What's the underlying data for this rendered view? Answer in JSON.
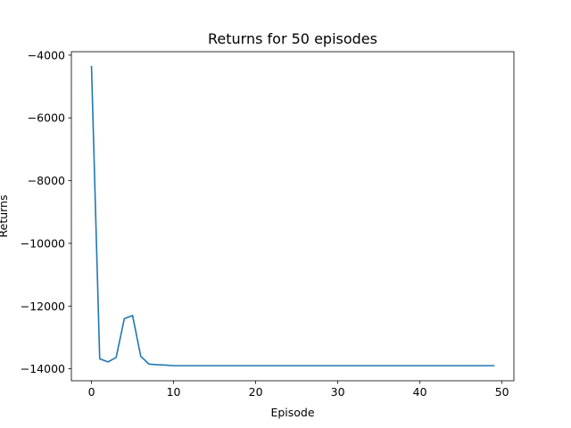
{
  "chart_data": {
    "type": "line",
    "title": "Returns for 50 episodes",
    "xlabel": "Episode",
    "ylabel": "Returns",
    "xlim": [
      -2.45,
      51.45
    ],
    "ylim": [
      -14380,
      -3890
    ],
    "x_ticks": [
      0,
      10,
      20,
      30,
      40,
      50
    ],
    "y_ticks": [
      -14000,
      -12000,
      -10000,
      -8000,
      -6000,
      -4000
    ],
    "x_tick_labels": [
      "0",
      "10",
      "20",
      "30",
      "40",
      "50"
    ],
    "y_tick_labels": [
      "−14000",
      "−12000",
      "−10000",
      "−8000",
      "−6000",
      "−4000"
    ],
    "grid": false,
    "legend": "none",
    "series": [
      {
        "color": "#1f77b4",
        "x": [
          0,
          1,
          2,
          3,
          4,
          5,
          6,
          7,
          8,
          9,
          10,
          11,
          12,
          13,
          14,
          15,
          16,
          17,
          18,
          19,
          20,
          21,
          22,
          23,
          24,
          25,
          26,
          27,
          28,
          29,
          30,
          31,
          32,
          33,
          34,
          35,
          36,
          37,
          38,
          39,
          40,
          41,
          42,
          43,
          44,
          45,
          46,
          47,
          48,
          49
        ],
        "y": [
          -4360,
          -13680,
          -13780,
          -13640,
          -12400,
          -12300,
          -13600,
          -13850,
          -13870,
          -13880,
          -13900,
          -13900,
          -13900,
          -13900,
          -13900,
          -13900,
          -13900,
          -13900,
          -13900,
          -13900,
          -13900,
          -13900,
          -13900,
          -13900,
          -13900,
          -13900,
          -13900,
          -13900,
          -13900,
          -13900,
          -13900,
          -13900,
          -13900,
          -13900,
          -13900,
          -13900,
          -13900,
          -13900,
          -13900,
          -13900,
          -13900,
          -13900,
          -13900,
          -13900,
          -13900,
          -13900,
          -13900,
          -13900,
          -13900,
          -13900
        ]
      }
    ]
  }
}
